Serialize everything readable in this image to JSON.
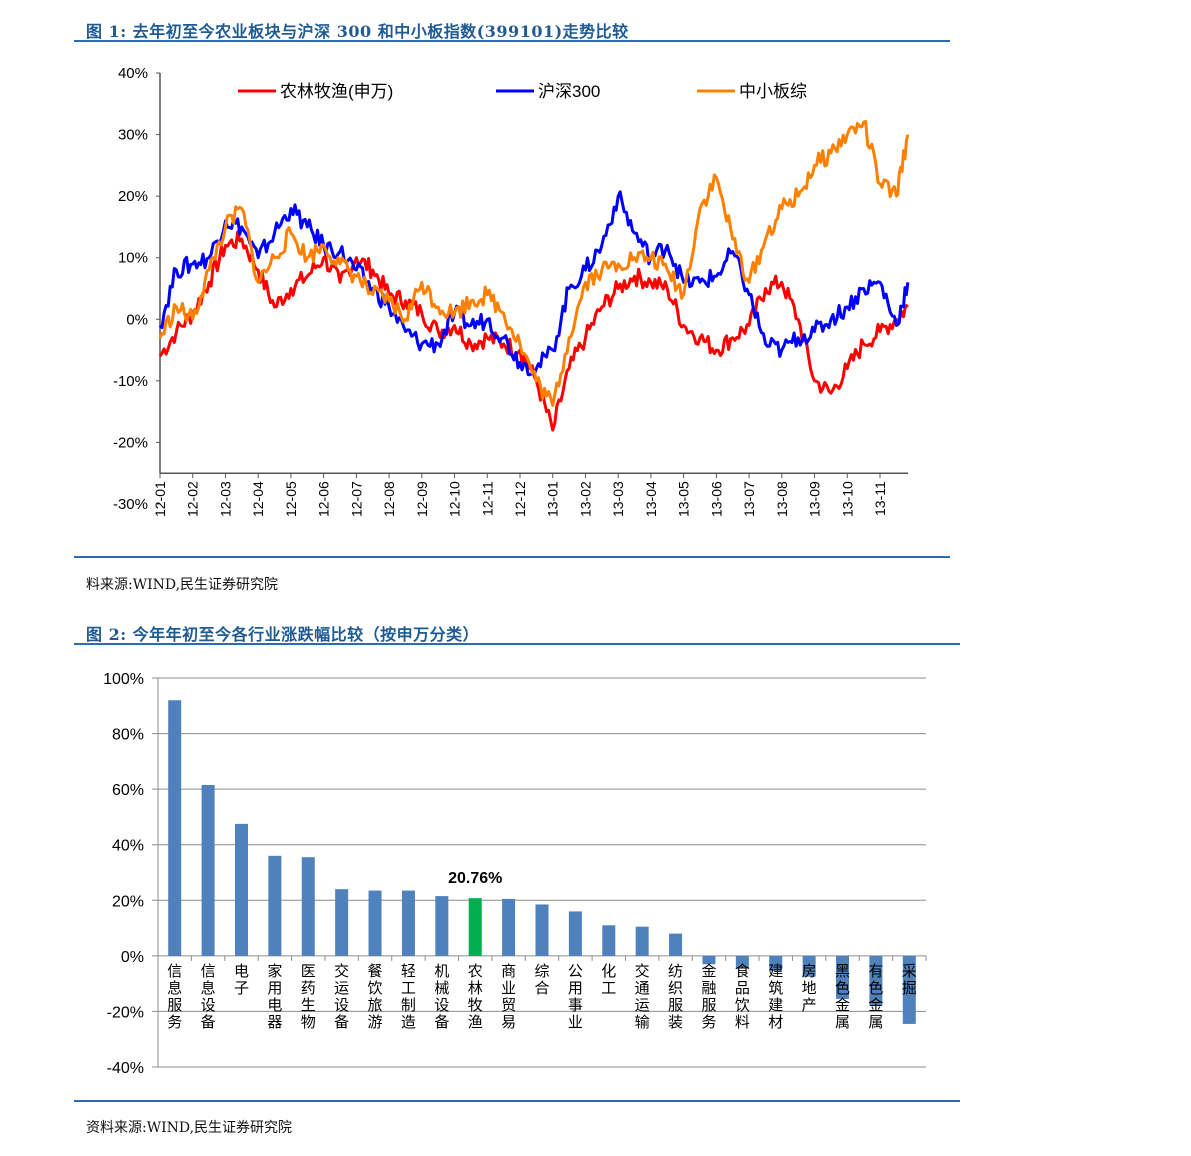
{
  "figure1": {
    "title": "图 1:  去年初至今农业板块与沪深 300 和中小板指数(399101)走势比较",
    "source": "料来源:WIND,民生证券研究院"
  },
  "figure2": {
    "title": "图 2:  今年年初至今各行业涨跌幅比较（按申万分类）",
    "source": "资料来源:WIND,民生证券研究院"
  },
  "chart_data": [
    {
      "type": "line",
      "title": "去年初至今农业板块与沪深 300 和中小板指数(399101)走势比较",
      "xlabel": "",
      "ylabel": "",
      "ylim": [
        -30,
        40
      ],
      "yticks": [
        "40%",
        "30%",
        "20%",
        "10%",
        "0%",
        "-10%",
        "-20%",
        "-30%"
      ],
      "ytick_values": [
        40,
        30,
        20,
        10,
        0,
        -10,
        -20,
        -30
      ],
      "xticks": [
        "12-01",
        "12-02",
        "12-03",
        "12-04",
        "12-05",
        "12-06",
        "12-07",
        "12-08",
        "12-09",
        "12-10",
        "12-11",
        "12-12",
        "13-01",
        "13-02",
        "13-03",
        "13-04",
        "13-05",
        "13-06",
        "13-07",
        "13-08",
        "13-09",
        "13-10",
        "13-11"
      ],
      "x_unit": "months since 12-01",
      "x": [
        0,
        0.5,
        1,
        1.5,
        2,
        2.5,
        3,
        3.5,
        4,
        4.5,
        5,
        5.5,
        6,
        6.5,
        7,
        7.5,
        8,
        8.5,
        9,
        9.5,
        10,
        10.5,
        11,
        11.5,
        12,
        12.5,
        13,
        13.5,
        14,
        14.5,
        15,
        15.5,
        16,
        16.5,
        17,
        17.5,
        18,
        18.5,
        19,
        19.5,
        20,
        20.5,
        21,
        21.5,
        22,
        22.5,
        22.85
      ],
      "legend_position": "top",
      "grid": false,
      "series": [
        {
          "name": "农林牧渔(申万)",
          "color": "#ff0000",
          "values": [
            -6,
            -2,
            1,
            6,
            12,
            13,
            8,
            2,
            5,
            7,
            10,
            6,
            10,
            8,
            4,
            3,
            1,
            -2,
            -1,
            -4,
            -3,
            -4,
            -5,
            -10,
            -18,
            -8,
            -3,
            2,
            5,
            7,
            6,
            5,
            -1,
            -3,
            -5,
            -3,
            -1,
            5,
            6,
            0,
            -10,
            -12,
            -8,
            -4,
            -2,
            0,
            2
          ]
        },
        {
          "name": "沪深300",
          "color": "#0000ff",
          "values": [
            -1,
            8,
            9,
            10,
            16,
            15,
            10,
            14,
            18,
            15,
            12,
            11,
            8,
            5,
            2,
            -2,
            -4,
            -4,
            1,
            -1,
            0,
            -3,
            -7,
            -8,
            -5,
            5,
            8,
            12,
            20,
            14,
            10,
            12,
            6,
            6,
            7,
            11,
            4,
            -4,
            -5,
            -3,
            -2,
            0,
            2,
            5,
            6,
            -1,
            6
          ]
        },
        {
          "name": "中小板综",
          "color": "#ff8000",
          "values": [
            -3,
            2,
            0,
            8,
            15,
            18,
            6,
            10,
            14,
            10,
            12,
            9,
            7,
            4,
            3,
            0,
            6,
            2,
            1,
            3,
            4,
            1,
            -4,
            -10,
            -14,
            -3,
            6,
            8,
            9,
            10,
            10,
            8,
            4,
            18,
            23,
            13,
            6,
            13,
            18,
            20,
            25,
            27,
            30,
            32,
            22,
            20,
            30
          ]
        }
      ]
    },
    {
      "type": "bar",
      "title": "今年年初至今各行业涨跌幅比较（按申万分类）",
      "xlabel": "",
      "ylabel": "",
      "ylim": [
        -40,
        100
      ],
      "yticks": [
        "100%",
        "80%",
        "60%",
        "40%",
        "20%",
        "0%",
        "-20%",
        "-40%"
      ],
      "ytick_values": [
        100,
        80,
        60,
        40,
        20,
        0,
        -20,
        -40
      ],
      "grid": true,
      "categories": [
        "信息服务",
        "信息设备",
        "电子",
        "家用电器",
        "医药生物",
        "交运设备",
        "餐饮旅游",
        "轻工制造",
        "机械设备",
        "农林牧渔",
        "商业贸易",
        "综合",
        "公用事业",
        "化工",
        "交通运输",
        "纺织服装",
        "金融服务",
        "食品饮料",
        "建筑建材",
        "房地产",
        "黑色金属",
        "有色金属",
        "采掘"
      ],
      "values": [
        92,
        61.5,
        47.5,
        36,
        35.5,
        24,
        23.5,
        23.5,
        21.5,
        20.76,
        20.5,
        18.5,
        16,
        11,
        10.5,
        8,
        -3,
        -4.5,
        -5.5,
        -7.5,
        -15.5,
        -18,
        -24.5
      ],
      "bar_color": "#4f81bd",
      "highlight": {
        "category": "农林牧渔",
        "color": "#00b050",
        "label": "20.76%"
      }
    }
  ]
}
